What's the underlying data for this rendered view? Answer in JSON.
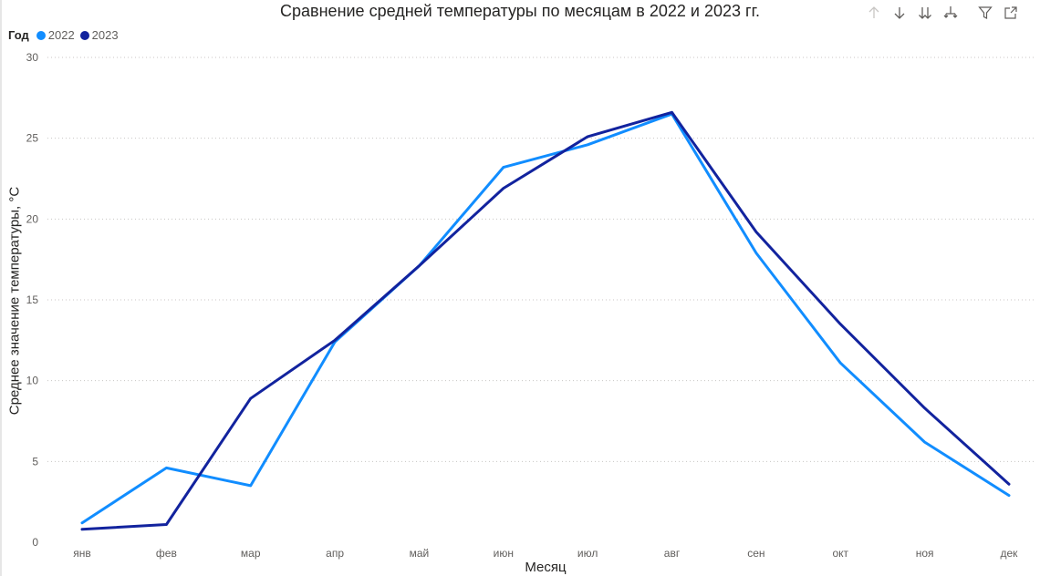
{
  "toolbar": {
    "icons": [
      "arrow-up-icon",
      "arrow-down-icon",
      "double-arrow-down-icon",
      "expand-hierarchy-icon",
      "filter-icon",
      "focus-mode-icon"
    ]
  },
  "chart_data": {
    "type": "line",
    "title": "Сравнение средней температуры по месяцам в 2022 и 2023 гг.",
    "xlabel": "Месяц",
    "ylabel": "Среднее значение температуры, °C",
    "legend_title": "Год",
    "legend_position": "top-left",
    "grid": true,
    "ylim": [
      0,
      30
    ],
    "yticks": [
      "0",
      "5",
      "10",
      "15",
      "20",
      "25",
      "30"
    ],
    "categories": [
      "янв",
      "фев",
      "мар",
      "апр",
      "май",
      "июн",
      "июл",
      "авг",
      "сен",
      "окт",
      "ноя",
      "дек"
    ],
    "series": [
      {
        "name": "2022",
        "color": "#118dff",
        "values": [
          1.2,
          4.6,
          3.5,
          12.4,
          17.1,
          23.2,
          24.6,
          26.5,
          17.9,
          11.1,
          6.2,
          2.9
        ]
      },
      {
        "name": "2023",
        "color": "#12239e",
        "values": [
          0.8,
          1.1,
          8.9,
          12.5,
          17.1,
          21.9,
          25.1,
          26.6,
          19.2,
          13.5,
          8.3,
          3.6
        ]
      }
    ]
  }
}
